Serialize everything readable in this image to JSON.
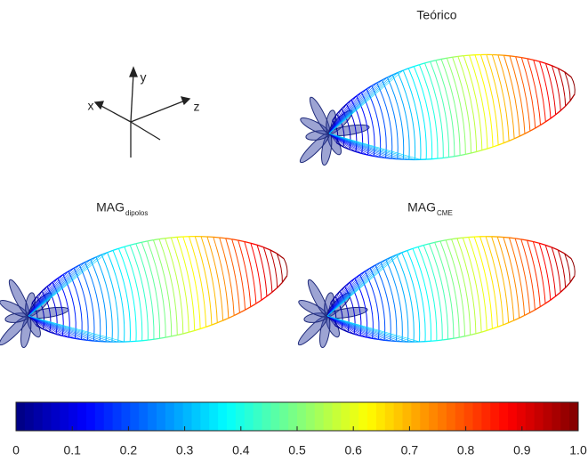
{
  "axes_glyph": {
    "x": "x",
    "y": "y",
    "z": "z"
  },
  "panels": [
    {
      "title": "Teórico"
    },
    {
      "title": "MAG",
      "subscript": "dipolos"
    },
    {
      "title": "MAG",
      "subscript": "CME"
    }
  ],
  "colorbar": {
    "colormap": "jet",
    "lim": [
      0,
      1
    ],
    "ticks": [
      0,
      0.1,
      0.2,
      0.3,
      0.4,
      0.5,
      0.6,
      0.7,
      0.8,
      0.9,
      {
        "value": 1,
        "label": "1.0"
      }
    ]
  }
}
